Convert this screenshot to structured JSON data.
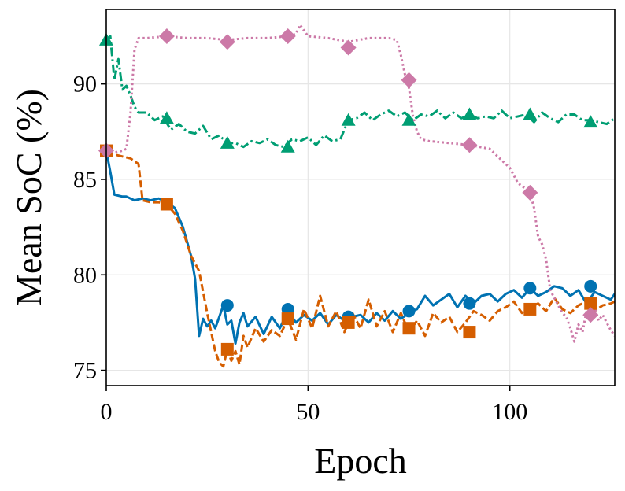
{
  "chart_data": {
    "type": "line",
    "title": "",
    "xlabel": "Epoch",
    "ylabel": "Mean SoC (%)",
    "xlim": [
      0,
      126
    ],
    "ylim": [
      74.2,
      93.9
    ],
    "xticks": [
      0,
      50,
      100
    ],
    "xtick_labels": [
      "0",
      "50",
      "100"
    ],
    "yticks": [
      75,
      80,
      85,
      90
    ],
    "ytick_labels": [
      "75",
      "80",
      "85",
      "90"
    ],
    "grid": true,
    "legend": "none",
    "series": [
      {
        "name": "series-blue-circle",
        "color": "#0072B2",
        "linestyle": "solid",
        "marker": "circle",
        "x": [
          0,
          1,
          2,
          4,
          5,
          7,
          9,
          11,
          13,
          15,
          17,
          19,
          21,
          22,
          23,
          24,
          25,
          26,
          27,
          28,
          29,
          30,
          31,
          32,
          33,
          34,
          35,
          37,
          39,
          41,
          43,
          45,
          47,
          49,
          51,
          53,
          55,
          57,
          59,
          61,
          63,
          65,
          67,
          69,
          71,
          73,
          75,
          77,
          79,
          81,
          83,
          85,
          87,
          89,
          91,
          93,
          95,
          97,
          99,
          101,
          103,
          105,
          107,
          109,
          111,
          113,
          115,
          117,
          119,
          121,
          123,
          125,
          126
        ],
        "y": [
          86.5,
          85.4,
          84.2,
          84.1,
          84.1,
          83.9,
          84.0,
          83.9,
          84.0,
          83.8,
          83.5,
          82.5,
          81.0,
          79.8,
          76.8,
          77.7,
          77.3,
          77.6,
          77.2,
          77.8,
          78.4,
          77.4,
          77.6,
          76.4,
          77.5,
          78.0,
          77.3,
          77.8,
          76.9,
          77.8,
          77.2,
          78.1,
          77.5,
          77.9,
          77.6,
          78.0,
          77.4,
          77.9,
          77.6,
          77.8,
          77.9,
          77.5,
          78.0,
          77.6,
          78.1,
          77.7,
          78.0,
          78.2,
          78.9,
          78.4,
          78.7,
          79.0,
          78.3,
          78.9,
          78.5,
          78.9,
          79.0,
          78.6,
          79.0,
          79.2,
          78.8,
          79.3,
          78.9,
          79.1,
          79.4,
          79.3,
          78.9,
          79.2,
          78.5,
          79.1,
          78.9,
          78.7,
          79.0
        ],
        "marker_x": [
          0,
          30,
          45,
          60,
          75,
          90,
          105,
          120
        ],
        "marker_y": [
          86.5,
          78.4,
          78.2,
          77.8,
          78.1,
          78.5,
          79.3,
          79.4
        ]
      },
      {
        "name": "series-orange-square",
        "color": "#D55E00",
        "linestyle": "dashed",
        "marker": "square",
        "x": [
          0,
          2,
          4,
          6,
          8,
          9,
          11,
          13,
          15,
          17,
          19,
          21,
          23,
          25,
          26,
          27,
          28,
          29,
          30,
          31,
          32,
          33,
          34,
          35,
          37,
          39,
          41,
          43,
          45,
          47,
          49,
          51,
          53,
          55,
          57,
          59,
          61,
          63,
          65,
          67,
          69,
          71,
          73,
          75,
          77,
          79,
          81,
          83,
          85,
          87,
          89,
          91,
          93,
          95,
          97,
          99,
          101,
          103,
          105,
          107,
          109,
          111,
          113,
          115,
          117,
          119,
          121,
          123,
          125,
          126
        ],
        "y": [
          86.4,
          86.3,
          86.2,
          86.1,
          85.8,
          83.9,
          83.8,
          83.8,
          83.7,
          83.2,
          82.3,
          81.0,
          80.2,
          78.0,
          77.0,
          76.0,
          75.4,
          75.2,
          76.1,
          75.5,
          76.0,
          75.3,
          76.8,
          76.2,
          77.2,
          76.5,
          77.1,
          76.8,
          77.7,
          76.6,
          78.2,
          77.2,
          78.9,
          77.3,
          78.1,
          77.0,
          78.0,
          77.2,
          78.7,
          77.3,
          78.1,
          77.0,
          78.0,
          77.0,
          77.6,
          76.8,
          78.0,
          77.5,
          77.8,
          77.0,
          77.5,
          78.1,
          77.9,
          77.6,
          78.1,
          78.3,
          78.6,
          78.0,
          78.3,
          78.5,
          78.1,
          78.8,
          78.2,
          78.0,
          78.4,
          78.6,
          78.1,
          78.4,
          78.5,
          78.6
        ],
        "marker_x": [
          0,
          15,
          30,
          45,
          60,
          75,
          90,
          105,
          120
        ],
        "marker_y": [
          86.5,
          83.7,
          76.1,
          77.7,
          77.5,
          77.2,
          77.0,
          78.2,
          78.5
        ]
      },
      {
        "name": "series-green-triangle",
        "color": "#009E73",
        "linestyle": "dashdot",
        "marker": "triangle",
        "x": [
          0,
          1,
          2,
          3,
          4,
          5,
          6,
          7,
          8,
          10,
          12,
          14,
          16,
          18,
          20,
          22,
          24,
          26,
          28,
          30,
          32,
          34,
          36,
          38,
          40,
          42,
          44,
          46,
          48,
          50,
          52,
          54,
          56,
          58,
          60,
          62,
          64,
          66,
          68,
          70,
          72,
          74,
          76,
          78,
          80,
          82,
          84,
          86,
          88,
          90,
          92,
          94,
          96,
          98,
          100,
          102,
          104,
          106,
          108,
          110,
          112,
          114,
          116,
          118,
          120,
          122,
          124,
          126
        ],
        "y": [
          92.3,
          92.5,
          90.2,
          91.3,
          89.7,
          89.9,
          89.4,
          88.8,
          88.5,
          88.5,
          88.1,
          88.3,
          87.6,
          87.9,
          87.5,
          87.4,
          87.8,
          87.1,
          87.3,
          86.9,
          86.9,
          86.7,
          87.0,
          86.9,
          87.1,
          86.8,
          86.7,
          87.1,
          87.0,
          87.2,
          86.8,
          87.3,
          87.0,
          87.1,
          88.1,
          88.2,
          88.5,
          88.1,
          88.4,
          88.6,
          88.3,
          88.5,
          88.1,
          88.4,
          88.3,
          88.6,
          88.2,
          88.5,
          88.2,
          88.4,
          88.2,
          88.3,
          88.2,
          88.6,
          88.2,
          88.3,
          88.4,
          88.0,
          88.5,
          88.2,
          88.0,
          88.4,
          88.4,
          88.1,
          88.1,
          88.0,
          87.9,
          88.2
        ],
        "marker_x": [
          0,
          15,
          30,
          45,
          60,
          75,
          90,
          105,
          120
        ],
        "marker_y": [
          92.3,
          88.2,
          86.9,
          86.7,
          88.1,
          88.1,
          88.4,
          88.4,
          88.0
        ]
      },
      {
        "name": "series-pink-diamond",
        "color": "#CC79A7",
        "linestyle": "dotted",
        "marker": "diamond",
        "x": [
          0,
          2,
          4,
          5,
          6,
          7,
          8,
          10,
          15,
          20,
          25,
          30,
          35,
          40,
          45,
          47,
          48,
          50,
          55,
          60,
          65,
          70,
          72,
          73,
          74,
          75,
          76,
          77,
          78,
          80,
          85,
          90,
          95,
          98,
          100,
          102,
          104,
          105,
          106,
          107,
          108,
          109,
          110,
          111,
          112,
          113,
          114,
          115,
          116,
          117,
          118,
          119,
          120,
          121,
          122,
          123,
          124,
          125,
          126
        ],
        "y": [
          86.5,
          86.4,
          86.5,
          86.6,
          88.5,
          91.8,
          92.4,
          92.4,
          92.5,
          92.4,
          92.4,
          92.3,
          92.4,
          92.4,
          92.5,
          92.6,
          93.1,
          92.5,
          92.4,
          92.2,
          92.4,
          92.4,
          92.3,
          91.5,
          90.5,
          89.8,
          88.3,
          87.5,
          87.1,
          87.0,
          86.9,
          86.8,
          86.6,
          86.0,
          85.6,
          84.8,
          84.5,
          84.3,
          83.5,
          82.0,
          81.6,
          80.8,
          79.2,
          78.8,
          78.4,
          78.0,
          77.8,
          77.2,
          76.5,
          77.4,
          77.0,
          78.1,
          77.9,
          78.3,
          77.6,
          77.9,
          77.5,
          77.1,
          76.8
        ],
        "marker_x": [
          0,
          15,
          30,
          45,
          60,
          75,
          90,
          105,
          120
        ],
        "marker_y": [
          86.5,
          92.5,
          92.2,
          92.5,
          91.9,
          90.2,
          86.8,
          84.3,
          77.9
        ]
      }
    ]
  }
}
